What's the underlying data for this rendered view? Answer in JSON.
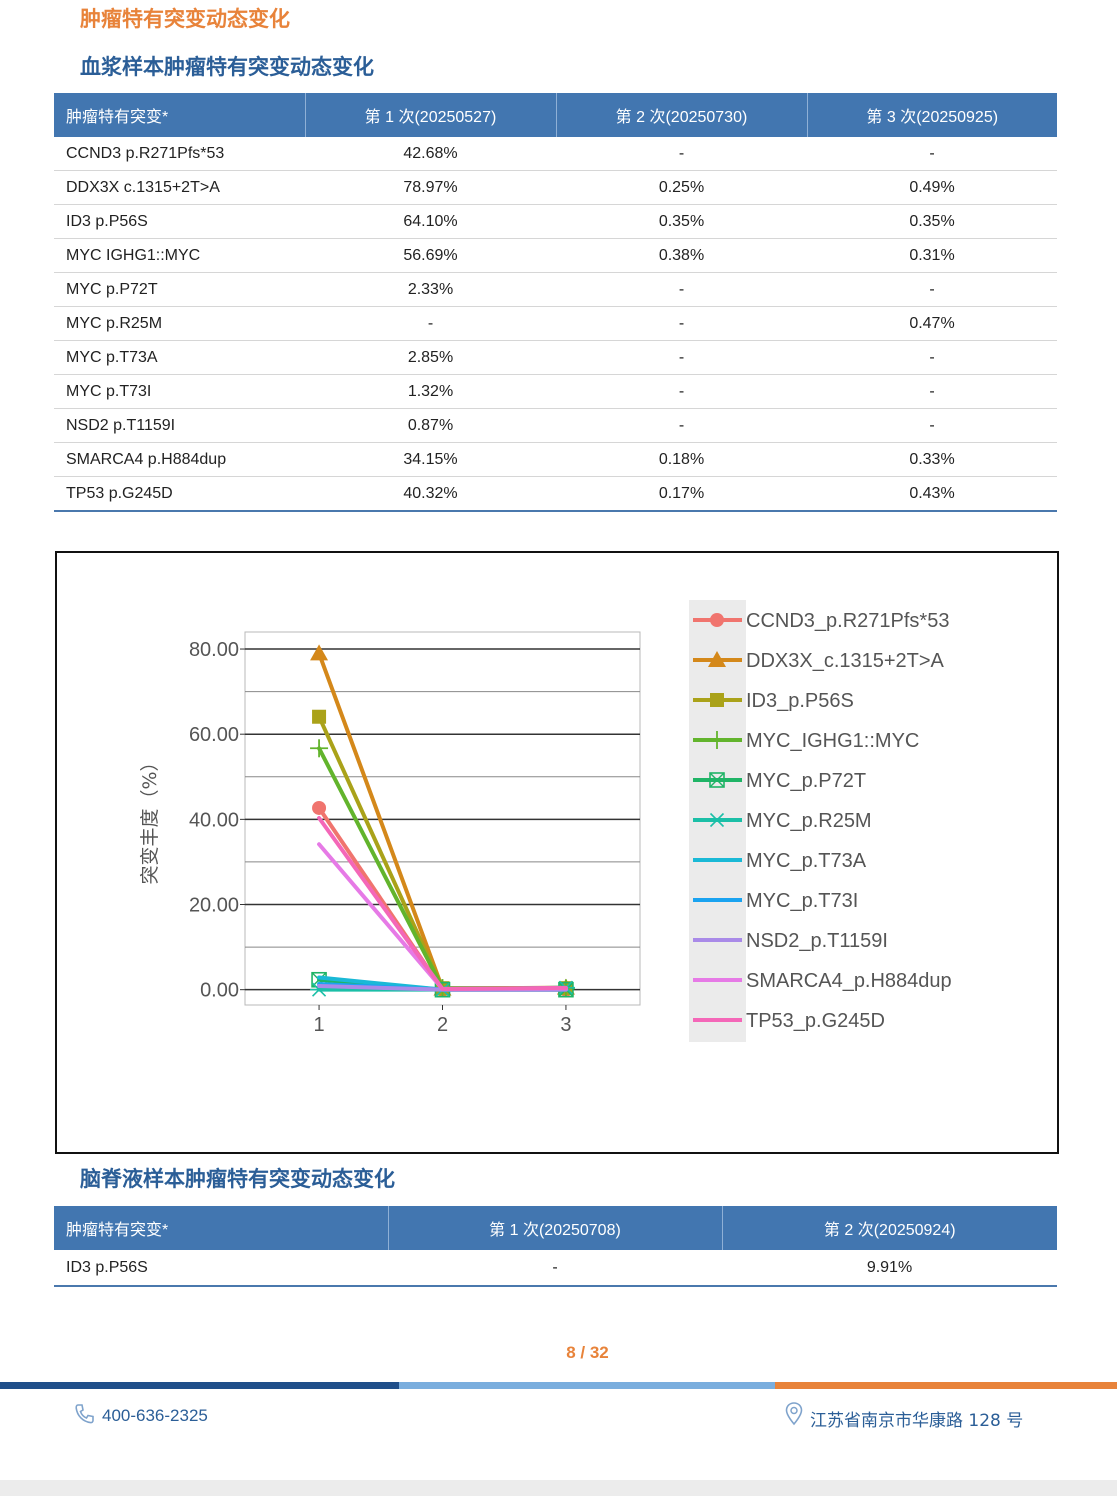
{
  "page_title": "肿瘤特有突变动态变化",
  "plasma": {
    "title": "血浆样本肿瘤特有突变动态变化",
    "headers": [
      "肿瘤特有突变*",
      "第 1 次(20250527)",
      "第 2 次(20250730)",
      "第 3 次(20250925)"
    ],
    "rows": [
      [
        "CCND3 p.R271Pfs*53",
        "42.68%",
        "-",
        "-"
      ],
      [
        "DDX3X c.1315+2T>A",
        "78.97%",
        "0.25%",
        "0.49%"
      ],
      [
        "ID3 p.P56S",
        "64.10%",
        "0.35%",
        "0.35%"
      ],
      [
        "MYC IGHG1::MYC",
        "56.69%",
        "0.38%",
        "0.31%"
      ],
      [
        "MYC p.P72T",
        "2.33%",
        "-",
        "-"
      ],
      [
        "MYC p.R25M",
        "-",
        "-",
        "0.47%"
      ],
      [
        "MYC p.T73A",
        "2.85%",
        "-",
        "-"
      ],
      [
        "MYC p.T73I",
        "1.32%",
        "-",
        "-"
      ],
      [
        "NSD2 p.T1159I",
        "0.87%",
        "-",
        "-"
      ],
      [
        "SMARCA4 p.H884dup",
        "34.15%",
        "0.18%",
        "0.33%"
      ],
      [
        "TP53 p.G245D",
        "40.32%",
        "0.17%",
        "0.43%"
      ]
    ]
  },
  "chart_data": {
    "type": "line",
    "ylabel": "突变丰度（%）",
    "xlabel": "",
    "x": [
      1,
      2,
      3
    ],
    "x_tick_labels": [
      "1",
      "2",
      "3"
    ],
    "y_tick_labels": [
      "0.00",
      "20.00",
      "40.00",
      "60.00",
      "80.00"
    ],
    "ylim": [
      -3.6,
      84
    ],
    "xlim": [
      0.4,
      3.6
    ],
    "grid": true,
    "legend_position": "right",
    "series": [
      {
        "name": "CCND3_p.R271Pfs*53",
        "values": [
          42.68,
          0,
          0
        ],
        "color": "#f0746e",
        "marker": "circle"
      },
      {
        "name": "DDX3X_c.1315+2T>A",
        "values": [
          78.97,
          0.25,
          0.49
        ],
        "color": "#d4881a",
        "marker": "triangle"
      },
      {
        "name": "ID3_p.P56S",
        "values": [
          64.1,
          0.35,
          0.35
        ],
        "color": "#aaa219",
        "marker": "square"
      },
      {
        "name": "MYC_IGHG1::MYC",
        "values": [
          56.69,
          0.38,
          0.31
        ],
        "color": "#62b42c",
        "marker": "plus"
      },
      {
        "name": "MYC_p.P72T",
        "values": [
          2.33,
          0,
          0
        ],
        "color": "#1fb466",
        "marker": "boxx"
      },
      {
        "name": "MYC_p.R25M",
        "values": [
          0,
          0,
          0.47
        ],
        "color": "#1bbfa7",
        "marker": "asterisk"
      },
      {
        "name": "MYC_p.T73A",
        "values": [
          2.85,
          0,
          0
        ],
        "color": "#1ab9d6",
        "marker": "none"
      },
      {
        "name": "MYC_p.T73I",
        "values": [
          1.32,
          0,
          0
        ],
        "color": "#1aa3f0",
        "marker": "none"
      },
      {
        "name": "NSD2_p.T1159I",
        "values": [
          0.87,
          0,
          0
        ],
        "color": "#a98ae8",
        "marker": "none"
      },
      {
        "name": "SMARCA4_p.H884dup",
        "values": [
          34.15,
          0.18,
          0.33
        ],
        "color": "#e67ae6",
        "marker": "none"
      },
      {
        "name": "TP53_p.G245D",
        "values": [
          40.32,
          0.17,
          0.43
        ],
        "color": "#f467b8",
        "marker": "none"
      }
    ]
  },
  "csf": {
    "title": "脑脊液样本肿瘤特有突变动态变化",
    "headers": [
      "肿瘤特有突变*",
      "第 1 次(20250708)",
      "第 2 次(20250924)"
    ],
    "rows": [
      [
        "ID3 p.P56S",
        "-",
        "9.91%"
      ]
    ]
  },
  "footer": {
    "page_number": "8  / 32",
    "phone": "400-636-2325",
    "address": "江苏省南京市华康路 128 号",
    "phone_icon": "phone-icon",
    "location_icon": "location-pin-icon",
    "bar_colors": [
      "#1f4f8a",
      "#7aaede",
      "#e8833a"
    ]
  }
}
